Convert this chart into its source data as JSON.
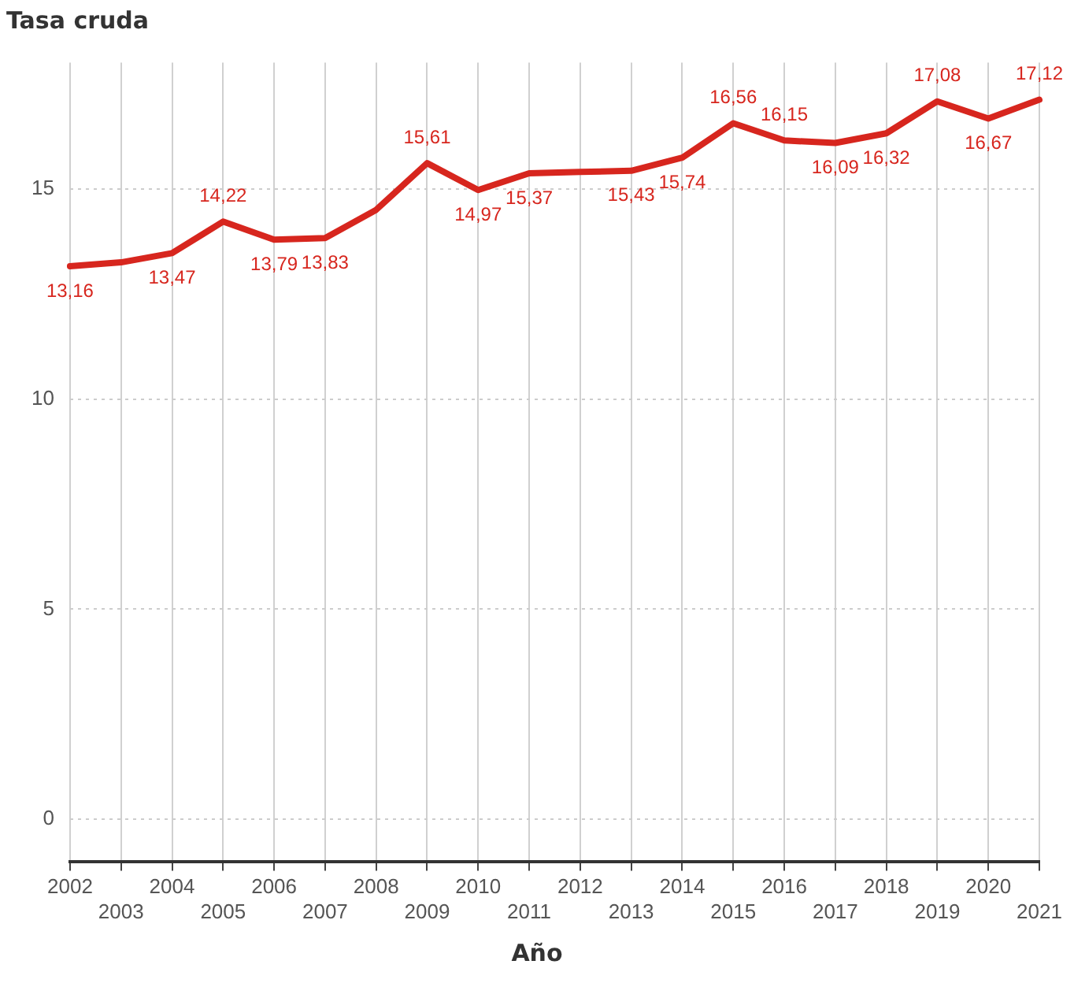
{
  "chart_data": {
    "type": "line",
    "ylabel": "Tasa cruda",
    "xlabel": "Año",
    "categories": [
      "2002",
      "2003",
      "2004",
      "2005",
      "2006",
      "2007",
      "2008",
      "2009",
      "2010",
      "2011",
      "2012",
      "2013",
      "2014",
      "2015",
      "2016",
      "2017",
      "2018",
      "2019",
      "2020",
      "2021"
    ],
    "series": [
      {
        "color": "#d7261e",
        "values": [
          13.16,
          13.25,
          13.47,
          14.22,
          13.79,
          13.83,
          14.5,
          15.61,
          14.97,
          15.37,
          15.4,
          15.43,
          15.74,
          16.56,
          16.15,
          16.09,
          16.32,
          17.08,
          16.67,
          17.12
        ],
        "value_labels": [
          "13,16",
          null,
          "13,47",
          "14,22",
          "13,79",
          "13,83",
          null,
          "15,61",
          "14,97",
          "15,37",
          null,
          "15,43",
          "15,74",
          "16,56",
          "16,15",
          "16,09",
          "16,32",
          "17,08",
          "16,67",
          "17,12"
        ]
      }
    ],
    "ylim": [
      -1,
      18
    ],
    "yticks": [
      0,
      5,
      10,
      15
    ],
    "grid": true,
    "legend": false,
    "marker": "none",
    "line_style": "solid"
  }
}
